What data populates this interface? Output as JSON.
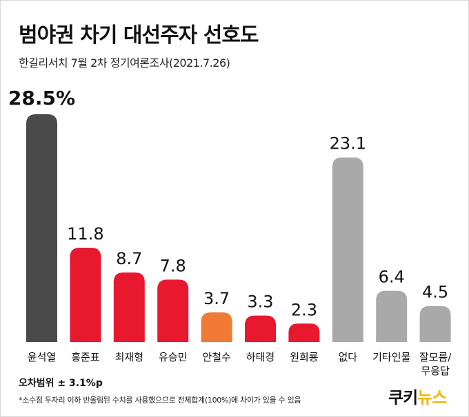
{
  "title": "범야권 차기 대선주자 선호도",
  "subtitle": "한길리서치 7월 2차 정기여론조사(2021.7.26)",
  "chart_data": {
    "type": "bar",
    "categories": [
      "윤석열",
      "홍준표",
      "최재형",
      "유승민",
      "안철수",
      "하태경",
      "원희룡",
      "없다",
      "기타인물",
      "잘모름/\n무응답"
    ],
    "values": [
      28.5,
      11.8,
      8.7,
      7.8,
      3.7,
      3.3,
      2.3,
      23.1,
      6.4,
      4.5
    ],
    "value_labels": [
      "28.5%",
      "11.8",
      "8.7",
      "7.8",
      "3.7",
      "3.3",
      "2.3",
      "23.1",
      "6.4",
      "4.5"
    ],
    "colors": [
      "#4a4a4a",
      "#e8192f",
      "#e8192f",
      "#e8192f",
      "#f07a33",
      "#e8192f",
      "#e8192f",
      "#a9a9a9",
      "#a9a9a9",
      "#a9a9a9"
    ],
    "ylim": [
      0,
      28.5
    ],
    "title": "범야권 차기 대선주자 선호도",
    "xlabel": "",
    "ylabel": "",
    "grid": false,
    "legend": "none"
  },
  "margin_of_error": "오차범위 ± 3.1%p",
  "footnote": "*소수점 두자리 이하 반올림된 수치를 사용했으므로 전체합계(100%)에 차이가 있을 수 있음",
  "logo": {
    "part1": "쿠키",
    "part2": "뉴스"
  }
}
